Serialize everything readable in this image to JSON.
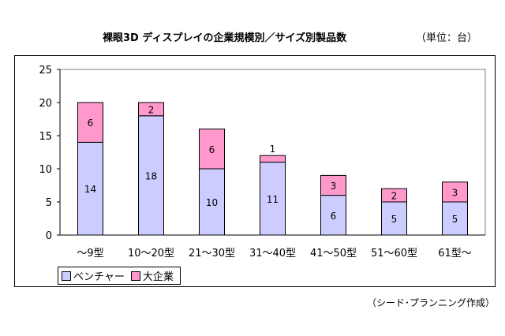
{
  "chart_data": {
    "type": "bar",
    "stacked": true,
    "title": "裸眼3D ディスプレイの企業規模別／サイズ別製品数",
    "unit_note": "（単位：台）",
    "credit": "（シード･プランニング作成）",
    "categories": [
      "～9型",
      "10～20型",
      "21～30型",
      "31～40型",
      "41～50型",
      "51～60型",
      "61型～"
    ],
    "series": [
      {
        "name": "ベンチャー",
        "values": [
          14,
          18,
          10,
          11,
          6,
          5,
          5
        ],
        "color": "#CCCCFF"
      },
      {
        "name": "大企業",
        "values": [
          6,
          2,
          6,
          1,
          3,
          2,
          3
        ],
        "color": "#FF99CC"
      }
    ],
    "ylim": [
      0,
      25
    ],
    "yticks": [
      0,
      5,
      10,
      15,
      20,
      25
    ],
    "grid": false,
    "legend": "bottom-left"
  }
}
